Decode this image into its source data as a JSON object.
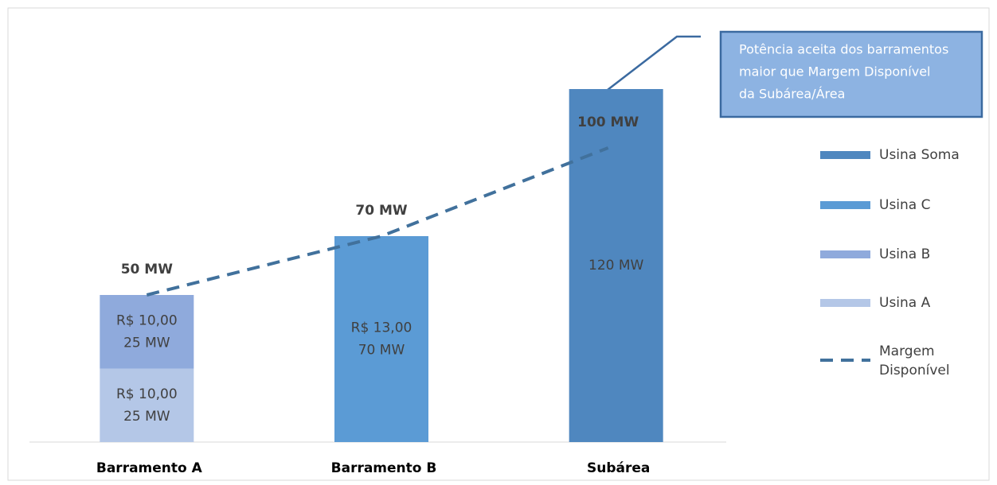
{
  "chart_data": {
    "type": "bar",
    "categories": [
      "Barramento A",
      "Barramento B",
      "Subárea"
    ],
    "ylim": [
      0,
      150
    ],
    "series": [
      {
        "name": "Usina A",
        "color": "#b4c7e7",
        "values": [
          25,
          null,
          null
        ],
        "price_labels": [
          "R$ 10,00",
          null,
          null
        ],
        "value_labels": [
          "25 MW",
          null,
          null
        ]
      },
      {
        "name": "Usina B",
        "color": "#8faadc",
        "values": [
          25,
          null,
          null
        ],
        "price_labels": [
          "R$ 10,00",
          null,
          null
        ],
        "value_labels": [
          "25 MW",
          null,
          null
        ]
      },
      {
        "name": "Usina C",
        "color": "#5b9bd5",
        "values": [
          null,
          70,
          null
        ],
        "price_labels": [
          null,
          "R$ 13,00",
          null
        ],
        "value_labels": [
          null,
          "70 MW",
          null
        ]
      },
      {
        "name": "Usina Soma",
        "color": "#4f87bf",
        "values": [
          null,
          null,
          120
        ],
        "price_labels": [
          null,
          null,
          null
        ],
        "value_labels": [
          null,
          null,
          "120 MW"
        ]
      }
    ],
    "line": {
      "name": "Margem Disponível",
      "color": "#41719c",
      "type": "line",
      "values": [
        50,
        70,
        100
      ],
      "value_labels": [
        "50 MW",
        "70 MW",
        "100 MW"
      ]
    },
    "annotation": [
      "Potência aceita dos barramentos",
      "maior que Margem Disponível",
      "da Subárea/Área"
    ]
  }
}
